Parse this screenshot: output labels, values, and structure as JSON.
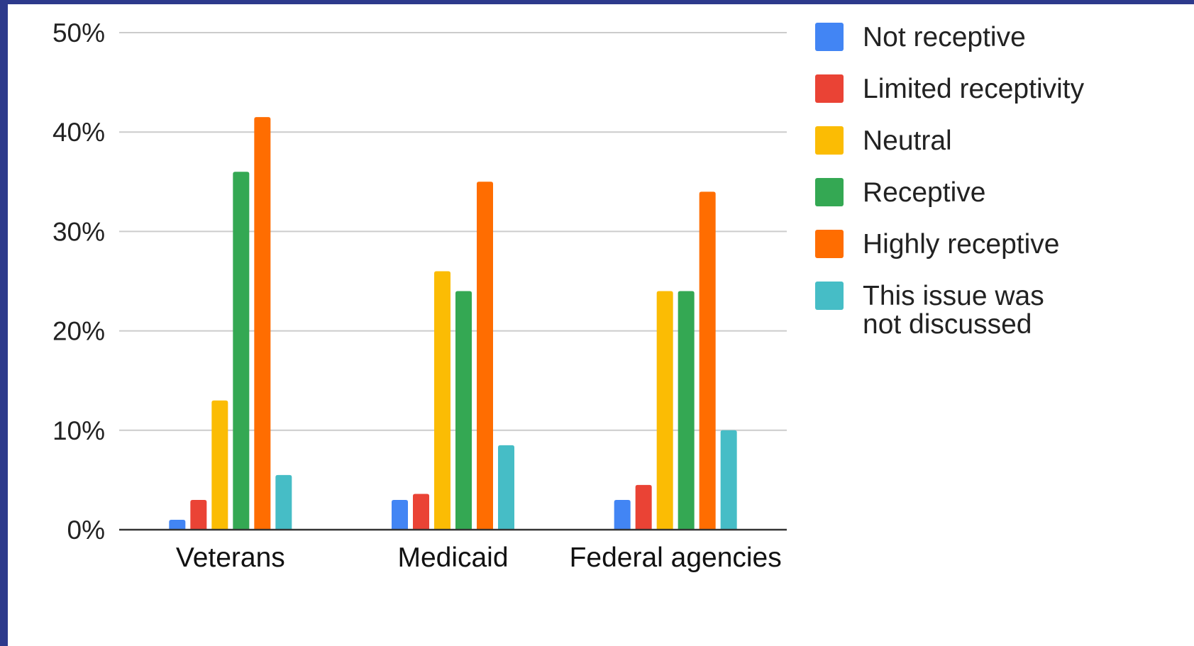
{
  "chart_data": {
    "type": "bar",
    "title": "",
    "xlabel": "",
    "ylabel": "",
    "ylim": [
      0,
      50
    ],
    "y_ticks": [
      "0%",
      "10%",
      "20%",
      "30%",
      "40%",
      "50%"
    ],
    "categories": [
      "Veterans",
      "Medicaid",
      "Federal agencies"
    ],
    "series": [
      {
        "name": "Not receptive",
        "color": "#4285f4",
        "values": [
          1,
          3,
          3
        ]
      },
      {
        "name": "Limited receptivity",
        "color": "#ea4335",
        "values": [
          3,
          3.6,
          4.5
        ]
      },
      {
        "name": "Neutral",
        "color": "#fbbc04",
        "values": [
          13,
          26,
          24
        ]
      },
      {
        "name": "Receptive",
        "color": "#34a853",
        "values": [
          36,
          24,
          24
        ]
      },
      {
        "name": "Highly receptive",
        "color": "#ff6d01",
        "values": [
          41.5,
          35,
          34
        ]
      },
      {
        "name": [
          "This issue was",
          "not discussed"
        ],
        "color": "#46bdc6",
        "values": [
          5.5,
          8.5,
          10
        ]
      }
    ],
    "grid": true,
    "legend_position": "right"
  }
}
